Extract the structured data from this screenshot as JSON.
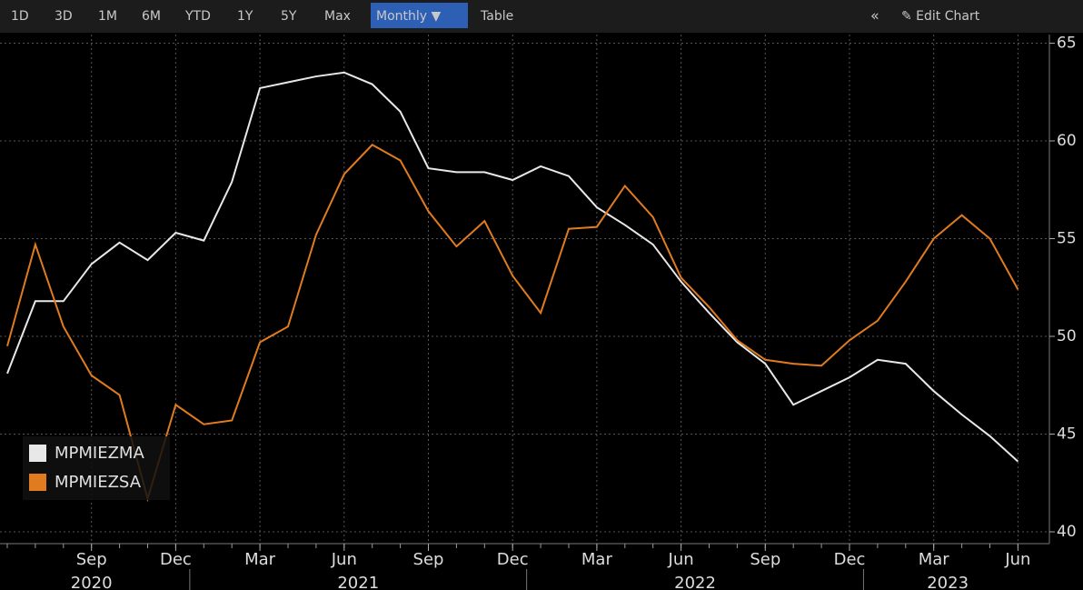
{
  "toolbar": {
    "buttons": [
      "1D",
      "3D",
      "1M",
      "6M",
      "YTD",
      "1Y",
      "5Y",
      "Max",
      "Monthly ▼",
      "Table"
    ],
    "right": [
      "«",
      "✎ Edit Chart"
    ]
  },
  "chart_data": {
    "type": "line",
    "x": [
      "2020-06",
      "2020-07",
      "2020-08",
      "2020-09",
      "2020-10",
      "2020-11",
      "2020-12",
      "2021-01",
      "2021-02",
      "2021-03",
      "2021-04",
      "2021-05",
      "2021-06",
      "2021-07",
      "2021-08",
      "2021-09",
      "2021-10",
      "2021-11",
      "2021-12",
      "2022-01",
      "2022-02",
      "2022-03",
      "2022-04",
      "2022-05",
      "2022-06",
      "2022-07",
      "2022-08",
      "2022-09",
      "2022-10",
      "2022-11",
      "2022-12",
      "2023-01",
      "2023-02",
      "2023-03",
      "2023-04",
      "2023-05",
      "2023-06"
    ],
    "series": [
      {
        "name": "MPMIEZMA",
        "color": "#e8e8e8",
        "values": [
          48.1,
          51.8,
          51.8,
          53.7,
          54.8,
          53.9,
          55.3,
          54.9,
          57.9,
          62.7,
          63.0,
          63.3,
          63.5,
          62.9,
          61.5,
          58.6,
          58.4,
          58.4,
          58.0,
          58.7,
          58.2,
          56.6,
          55.7,
          54.7,
          52.8,
          51.2,
          49.7,
          48.6,
          46.5,
          47.2,
          47.9,
          48.8,
          48.6,
          47.2,
          46.0,
          44.9,
          43.6
        ]
      },
      {
        "name": "MPMIEZSA",
        "color": "#e07b1f",
        "values": [
          49.5,
          54.7,
          50.5,
          48.0,
          47.0,
          41.7,
          46.5,
          45.5,
          45.7,
          49.7,
          50.5,
          55.2,
          58.3,
          59.8,
          59.0,
          56.4,
          54.6,
          55.9,
          53.1,
          51.2,
          55.5,
          55.6,
          57.7,
          56.1,
          53.0,
          51.5,
          49.8,
          48.8,
          48.6,
          48.5,
          49.8,
          50.8,
          52.8,
          55.0,
          56.2,
          55.0,
          52.4
        ]
      }
    ],
    "xticks": [
      {
        "value": "2020-09",
        "label": "Sep"
      },
      {
        "value": "2020-12",
        "label": "Dec"
      },
      {
        "value": "2021-03",
        "label": "Mar"
      },
      {
        "value": "2021-06",
        "label": "Jun"
      },
      {
        "value": "2021-09",
        "label": "Sep"
      },
      {
        "value": "2021-12",
        "label": "Dec"
      },
      {
        "value": "2022-03",
        "label": "Mar"
      },
      {
        "value": "2022-06",
        "label": "Jun"
      },
      {
        "value": "2022-09",
        "label": "Sep"
      },
      {
        "value": "2022-12",
        "label": "Dec"
      },
      {
        "value": "2023-03",
        "label": "Mar"
      },
      {
        "value": "2023-06",
        "label": "Jun"
      }
    ],
    "years": [
      "2020",
      "2021",
      "2022",
      "2023"
    ],
    "ylim": [
      40,
      65
    ],
    "yticks": [
      40,
      45,
      50,
      55,
      60,
      65
    ],
    "grid": true,
    "legend": "lower left"
  }
}
